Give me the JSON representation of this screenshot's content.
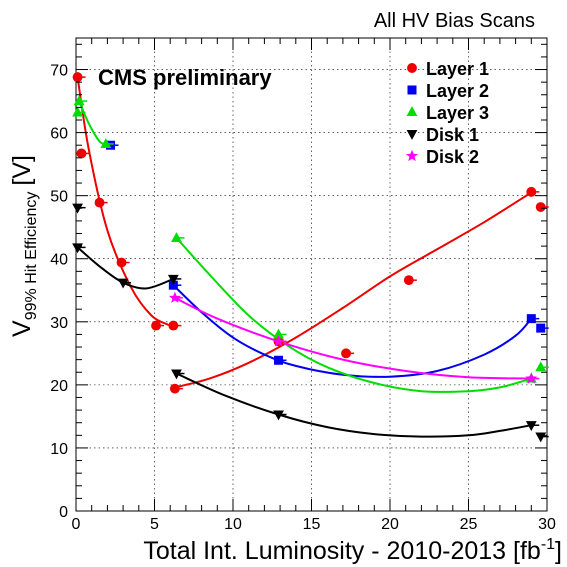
{
  "chart_data": {
    "type": "scatter",
    "title": "All HV Bias Scans",
    "annotation": "CMS preliminary",
    "xlabel": "Total Int. Luminosity - 2010-2013 [fb",
    "xlabel_sup": "-1",
    "xlabel_close": "]",
    "ylabel_v": "V",
    "ylabel_sub": "99% Hit Efficiency",
    "ylabel_unit": "[V]",
    "xlim": [
      0,
      30
    ],
    "ylim": [
      0,
      75
    ],
    "xticks": [
      0,
      5,
      10,
      15,
      20,
      25,
      30
    ],
    "yticks": [
      0,
      10,
      20,
      30,
      40,
      50,
      60,
      70
    ],
    "legend_position": "top-right",
    "series": [
      {
        "name": "Layer 1",
        "marker": "circle",
        "color": "#ee0000",
        "points": [
          [
            0.1,
            68.8
          ],
          [
            0.35,
            56.7
          ],
          [
            1.5,
            48.9
          ],
          [
            2.9,
            39.4
          ],
          [
            5.1,
            29.4
          ],
          [
            6.2,
            29.4
          ],
          [
            6.3,
            19.4
          ],
          [
            12.9,
            26.9
          ],
          [
            17.2,
            25.0
          ],
          [
            21.2,
            36.6
          ],
          [
            29.0,
            50.6
          ],
          [
            29.6,
            48.2
          ]
        ],
        "curves": [
          [
            [
              0.1,
              68.8
            ],
            [
              0.8,
              57.5
            ],
            [
              2.0,
              44.5
            ],
            [
              3.5,
              35.5
            ],
            [
              4.8,
              31.0
            ],
            [
              5.9,
              29.5
            ]
          ],
          [
            [
              6.3,
              19.6
            ],
            [
              8.5,
              21.0
            ],
            [
              11.0,
              23.5
            ],
            [
              14.0,
              27.5
            ],
            [
              17.0,
              32.2
            ],
            [
              20.0,
              37.2
            ],
            [
              23.0,
              41.5
            ],
            [
              26.0,
              45.8
            ],
            [
              29.0,
              50.5
            ]
          ]
        ]
      },
      {
        "name": "Layer 2",
        "marker": "square",
        "color": "#0000ee",
        "points": [
          [
            2.2,
            58.0
          ],
          [
            6.2,
            35.8
          ],
          [
            12.9,
            23.9
          ],
          [
            29.0,
            30.5
          ],
          [
            29.6,
            29.0
          ]
        ],
        "curves": [
          [
            [
              6.2,
              35.8
            ],
            [
              8.0,
              31.5
            ],
            [
              10.0,
              27.5
            ],
            [
              12.0,
              24.8
            ],
            [
              14.0,
              23.0
            ],
            [
              17.0,
              21.6
            ],
            [
              20.0,
              21.3
            ],
            [
              23.0,
              22.2
            ],
            [
              26.0,
              24.8
            ],
            [
              28.0,
              27.8
            ],
            [
              29.0,
              30.5
            ]
          ]
        ]
      },
      {
        "name": "Layer 3",
        "marker": "triangle-up",
        "color": "#00dd00",
        "points": [
          [
            0.1,
            63.2
          ],
          [
            0.2,
            65.0
          ],
          [
            1.9,
            58.2
          ],
          [
            6.4,
            43.3
          ],
          [
            12.9,
            28.0
          ],
          [
            29.0,
            21.0
          ],
          [
            29.6,
            22.8
          ]
        ],
        "curves": [
          [
            [
              0.2,
              65.0
            ],
            [
              0.8,
              61.5
            ],
            [
              1.5,
              58.6
            ],
            [
              1.9,
              58.2
            ]
          ],
          [
            [
              6.4,
              43.3
            ],
            [
              8.5,
              37.5
            ],
            [
              11.0,
              31.0
            ],
            [
              13.5,
              26.2
            ],
            [
              16.0,
              22.8
            ],
            [
              19.0,
              20.3
            ],
            [
              22.0,
              19.0
            ],
            [
              25.0,
              19.0
            ],
            [
              27.0,
              19.6
            ],
            [
              29.0,
              21.0
            ]
          ]
        ]
      },
      {
        "name": "Disk 1",
        "marker": "triangle-down",
        "color": "#000000",
        "points": [
          [
            0.1,
            48.1
          ],
          [
            0.1,
            41.8
          ],
          [
            3.0,
            36.2
          ],
          [
            6.2,
            36.8
          ],
          [
            6.4,
            21.8
          ],
          [
            12.9,
            15.3
          ],
          [
            29.0,
            13.6
          ],
          [
            29.6,
            11.8
          ]
        ],
        "curves": [
          [
            [
              0.1,
              41.8
            ],
            [
              1.5,
              38.8
            ],
            [
              3.0,
              36.2
            ],
            [
              4.5,
              35.3
            ],
            [
              6.2,
              36.8
            ]
          ],
          [
            [
              6.4,
              21.8
            ],
            [
              9.5,
              18.3
            ],
            [
              12.9,
              15.3
            ],
            [
              16.0,
              13.3
            ],
            [
              19.0,
              12.2
            ],
            [
              22.0,
              11.8
            ],
            [
              25.0,
              12.0
            ],
            [
              27.0,
              12.7
            ],
            [
              29.0,
              13.6
            ]
          ]
        ]
      },
      {
        "name": "Disk 2",
        "marker": "star",
        "color": "#ff00ff",
        "points": [
          [
            6.3,
            33.8
          ],
          [
            12.9,
            26.9
          ],
          [
            29.0,
            21.0
          ]
        ],
        "curves": [
          [
            [
              6.3,
              33.8
            ],
            [
              9.0,
              30.5
            ],
            [
              12.9,
              26.9
            ],
            [
              17.0,
              24.0
            ],
            [
              21.0,
              22.2
            ],
            [
              25.0,
              21.2
            ],
            [
              29.0,
              21.0
            ]
          ]
        ]
      }
    ]
  }
}
